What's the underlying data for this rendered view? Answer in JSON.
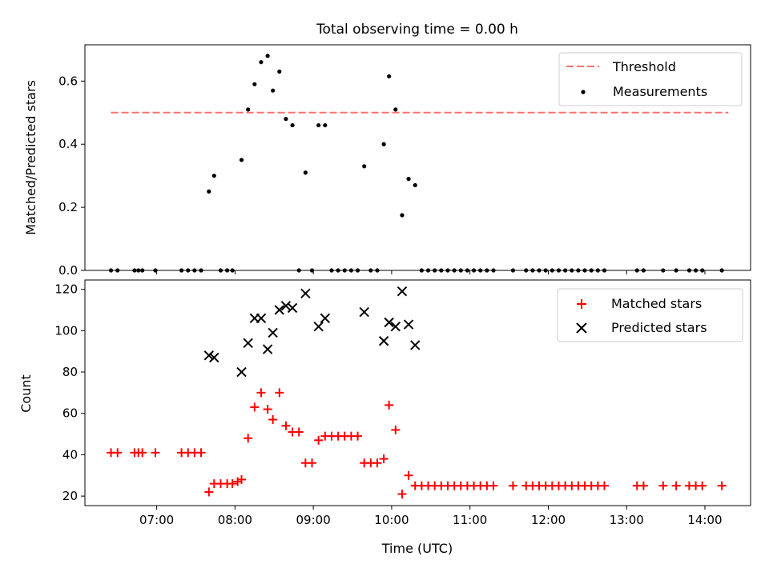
{
  "chart_data": [
    {
      "type": "scatter",
      "title": "Total observing time = 0.00 h",
      "xlabel": "",
      "ylabel": "Matched/Predicted stars",
      "ylim": [
        0,
        0.715
      ],
      "yticks": [
        "0.0",
        "0.2",
        "0.4",
        "0.6"
      ],
      "xlim": [
        "06:05",
        "14:35"
      ],
      "legend_position": "top-right",
      "threshold": {
        "name": "Threshold",
        "value": 0.5,
        "x_start": "06:25",
        "x_end": "14:18",
        "color": "#ff7070"
      },
      "series": [
        {
          "name": "Measurements",
          "color": "#000000",
          "points": [
            [
              "06:25",
              0
            ],
            [
              "06:30",
              0
            ],
            [
              "06:43",
              0
            ],
            [
              "06:46",
              0
            ],
            [
              "06:49",
              0
            ],
            [
              "06:59",
              0
            ],
            [
              "07:19",
              0
            ],
            [
              "07:24",
              0
            ],
            [
              "07:29",
              0
            ],
            [
              "07:34",
              0
            ],
            [
              "07:40",
              0.25
            ],
            [
              "07:44",
              0.3
            ],
            [
              "07:49",
              0
            ],
            [
              "07:54",
              0
            ],
            [
              "07:58",
              0
            ],
            [
              "08:05",
              0.35
            ],
            [
              "08:10",
              0.51
            ],
            [
              "08:15",
              0.59
            ],
            [
              "08:20",
              0.66
            ],
            [
              "08:25",
              0.68
            ],
            [
              "08:29",
              0.57
            ],
            [
              "08:34",
              0.63
            ],
            [
              "08:39",
              0.48
            ],
            [
              "08:44",
              0.46
            ],
            [
              "08:49",
              0
            ],
            [
              "08:54",
              0.31
            ],
            [
              "08:59",
              0
            ],
            [
              "09:04",
              0.46
            ],
            [
              "09:09",
              0.46
            ],
            [
              "09:14",
              0
            ],
            [
              "09:19",
              0
            ],
            [
              "09:24",
              0
            ],
            [
              "09:29",
              0
            ],
            [
              "09:34",
              0
            ],
            [
              "09:39",
              0.33
            ],
            [
              "09:44",
              0
            ],
            [
              "09:49",
              0
            ],
            [
              "09:54",
              0.4
            ],
            [
              "09:58",
              0.615
            ],
            [
              "10:03",
              0.51
            ],
            [
              "10:08",
              0.175
            ],
            [
              "10:13",
              0.29
            ],
            [
              "10:18",
              0.27
            ],
            [
              "10:23",
              0
            ],
            [
              "10:28",
              0
            ],
            [
              "10:33",
              0
            ],
            [
              "10:38",
              0
            ],
            [
              "10:43",
              0
            ],
            [
              "10:48",
              0
            ],
            [
              "10:53",
              0
            ],
            [
              "10:58",
              0
            ],
            [
              "11:03",
              0
            ],
            [
              "11:08",
              0
            ],
            [
              "11:13",
              0
            ],
            [
              "11:18",
              0
            ],
            [
              "11:33",
              0
            ],
            [
              "11:43",
              0
            ],
            [
              "11:48",
              0
            ],
            [
              "11:53",
              0
            ],
            [
              "11:58",
              0
            ],
            [
              "12:03",
              0
            ],
            [
              "12:08",
              0
            ],
            [
              "12:13",
              0
            ],
            [
              "12:18",
              0
            ],
            [
              "12:23",
              0
            ],
            [
              "12:28",
              0
            ],
            [
              "12:33",
              0
            ],
            [
              "12:38",
              0
            ],
            [
              "12:43",
              0
            ],
            [
              "13:08",
              0
            ],
            [
              "13:13",
              0
            ],
            [
              "13:28",
              0
            ],
            [
              "13:38",
              0
            ],
            [
              "13:48",
              0
            ],
            [
              "13:53",
              0
            ],
            [
              "13:58",
              0
            ],
            [
              "14:13",
              0
            ]
          ]
        }
      ]
    },
    {
      "type": "scatter",
      "title": "",
      "xlabel": "Time (UTC)",
      "ylabel": "Count",
      "ylim": [
        15.4,
        124.5
      ],
      "yticks": [
        "20",
        "40",
        "60",
        "80",
        "100",
        "120"
      ],
      "xlim": [
        "06:05",
        "14:35"
      ],
      "xticks": [
        "07:00",
        "08:00",
        "09:00",
        "10:00",
        "11:00",
        "12:00",
        "13:00",
        "14:00"
      ],
      "legend_position": "top-right",
      "series": [
        {
          "name": "Matched stars",
          "marker": "+",
          "color": "#ff0000",
          "points": [
            [
              "06:25",
              41
            ],
            [
              "06:30",
              41
            ],
            [
              "06:43",
              41
            ],
            [
              "06:46",
              41
            ],
            [
              "06:49",
              41
            ],
            [
              "06:59",
              41
            ],
            [
              "07:19",
              41
            ],
            [
              "07:24",
              41
            ],
            [
              "07:29",
              41
            ],
            [
              "07:34",
              41
            ],
            [
              "07:40",
              22
            ],
            [
              "07:44",
              26
            ],
            [
              "07:49",
              26
            ],
            [
              "07:54",
              26
            ],
            [
              "07:58",
              26
            ],
            [
              "08:02",
              27
            ],
            [
              "08:05",
              28
            ],
            [
              "08:10",
              48
            ],
            [
              "08:15",
              63
            ],
            [
              "08:20",
              70
            ],
            [
              "08:25",
              62
            ],
            [
              "08:29",
              57
            ],
            [
              "08:34",
              70
            ],
            [
              "08:39",
              54
            ],
            [
              "08:44",
              51
            ],
            [
              "08:49",
              51
            ],
            [
              "08:54",
              36
            ],
            [
              "08:59",
              36
            ],
            [
              "09:04",
              47
            ],
            [
              "09:09",
              49
            ],
            [
              "09:14",
              49
            ],
            [
              "09:19",
              49
            ],
            [
              "09:24",
              49
            ],
            [
              "09:29",
              49
            ],
            [
              "09:34",
              49
            ],
            [
              "09:39",
              36
            ],
            [
              "09:44",
              36
            ],
            [
              "09:49",
              36
            ],
            [
              "09:54",
              38
            ],
            [
              "09:58",
              64
            ],
            [
              "10:03",
              52
            ],
            [
              "10:08",
              21
            ],
            [
              "10:13",
              30
            ],
            [
              "10:18",
              25
            ],
            [
              "10:23",
              25
            ],
            [
              "10:28",
              25
            ],
            [
              "10:33",
              25
            ],
            [
              "10:38",
              25
            ],
            [
              "10:43",
              25
            ],
            [
              "10:48",
              25
            ],
            [
              "10:53",
              25
            ],
            [
              "10:58",
              25
            ],
            [
              "11:03",
              25
            ],
            [
              "11:08",
              25
            ],
            [
              "11:13",
              25
            ],
            [
              "11:18",
              25
            ],
            [
              "11:33",
              25
            ],
            [
              "11:43",
              25
            ],
            [
              "11:48",
              25
            ],
            [
              "11:53",
              25
            ],
            [
              "11:58",
              25
            ],
            [
              "12:03",
              25
            ],
            [
              "12:08",
              25
            ],
            [
              "12:13",
              25
            ],
            [
              "12:18",
              25
            ],
            [
              "12:23",
              25
            ],
            [
              "12:28",
              25
            ],
            [
              "12:33",
              25
            ],
            [
              "12:38",
              25
            ],
            [
              "12:43",
              25
            ],
            [
              "13:08",
              25
            ],
            [
              "13:13",
              25
            ],
            [
              "13:28",
              25
            ],
            [
              "13:38",
              25
            ],
            [
              "13:48",
              25
            ],
            [
              "13:53",
              25
            ],
            [
              "13:58",
              25
            ],
            [
              "14:13",
              25
            ]
          ]
        },
        {
          "name": "Predicted stars",
          "marker": "x",
          "color": "#000000",
          "points": [
            [
              "07:40",
              88
            ],
            [
              "07:44",
              87
            ],
            [
              "08:05",
              80
            ],
            [
              "08:10",
              94
            ],
            [
              "08:15",
              106
            ],
            [
              "08:20",
              106
            ],
            [
              "08:25",
              91
            ],
            [
              "08:29",
              99
            ],
            [
              "08:34",
              110
            ],
            [
              "08:39",
              112
            ],
            [
              "08:44",
              111
            ],
            [
              "08:54",
              118
            ],
            [
              "09:04",
              102
            ],
            [
              "09:09",
              106
            ],
            [
              "09:39",
              109
            ],
            [
              "09:54",
              95
            ],
            [
              "09:58",
              104
            ],
            [
              "10:03",
              102
            ],
            [
              "10:08",
              119
            ],
            [
              "10:13",
              103
            ],
            [
              "10:18",
              93
            ]
          ]
        }
      ]
    }
  ]
}
